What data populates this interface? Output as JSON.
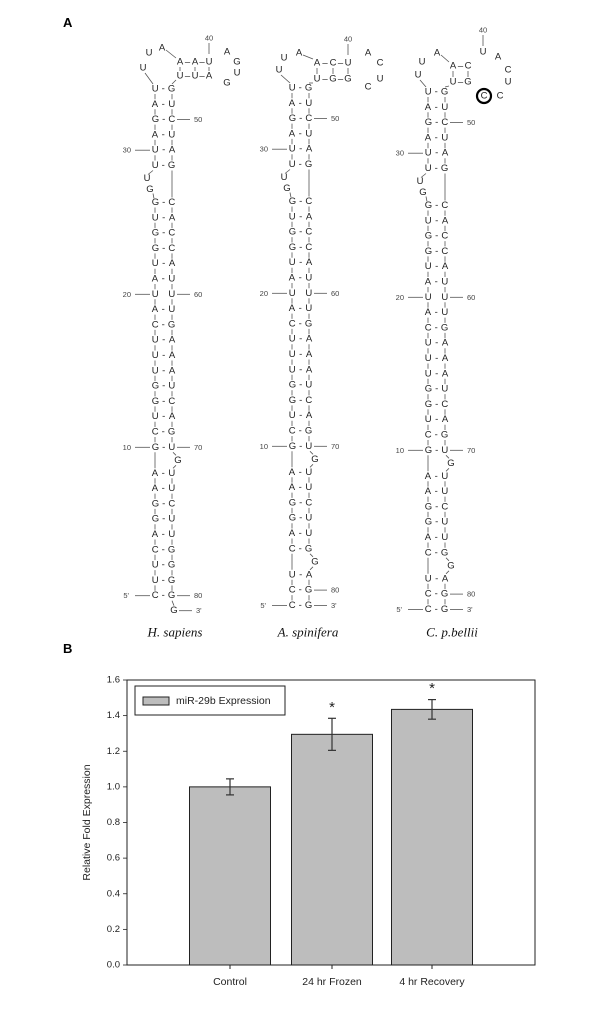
{
  "panels": {
    "a": "A",
    "b": "B"
  },
  "structures": [
    {
      "species": "H. sapiens",
      "loop": {
        "left": [
          "U",
          "U",
          "A"
        ],
        "top": [
          "A",
          "A",
          "U"
        ],
        "bottom": [
          "U",
          "U",
          "A"
        ],
        "hairpin": [
          "A",
          "G",
          "U",
          "G"
        ],
        "label": "40"
      },
      "rows": [
        "U-G",
        "A-U",
        "G-C",
        "A-U",
        "U-A",
        "U-G",
        {
          "bulge": "left",
          "bases": [
            "U",
            "G"
          ]
        },
        "G-C",
        "U-A",
        "G-C",
        "G-C",
        "U-A",
        "A-U",
        "U U",
        "A-U",
        "C-G",
        "U-A",
        "U-A",
        "U-A",
        "G-U",
        "G-C",
        "U-A",
        "C-G",
        "G-U",
        {
          "bulge": "right",
          "bases": [
            "G"
          ]
        },
        "A-U",
        "A-U",
        "G-C",
        "G-U",
        "A-U",
        "C-G",
        "U-G",
        "U-G",
        "C-G",
        {
          "tail": "G"
        }
      ],
      "labels": [
        {
          "row": 2,
          "side": "right",
          "text": "50"
        },
        {
          "row": 4,
          "side": "left",
          "text": "30"
        },
        {
          "row": 12,
          "side": "left",
          "text": "20"
        },
        {
          "row": 12,
          "side": "right",
          "text": "60"
        },
        {
          "row": 22,
          "side": "left",
          "text": "10"
        },
        {
          "row": 22,
          "side": "right",
          "text": "70"
        },
        {
          "row": 31,
          "side": "left",
          "text": "5'"
        },
        {
          "row": 31,
          "side": "right",
          "text": "80"
        },
        {
          "row": 32,
          "side": "right",
          "text": "3'"
        }
      ]
    },
    {
      "species": "A. spinifera",
      "loop": {
        "left": [
          "U",
          "U",
          "A"
        ],
        "top": [
          "A",
          "C",
          "U"
        ],
        "bottom": [
          "U",
          "G",
          "G"
        ],
        "hairpin": [
          "A",
          "C",
          "U",
          "C"
        ],
        "label": "40"
      },
      "rows": [
        "U-G",
        "A-U",
        "G-C",
        "A-U",
        "U-A",
        "U-G",
        {
          "bulge": "left",
          "bases": [
            "U",
            "G"
          ]
        },
        "G-C",
        "U-A",
        "G-C",
        "G-C",
        "U-A",
        "A-U",
        "U U",
        "A-U",
        "C-G",
        "U-A",
        "U-A",
        "U-A",
        "G-U",
        "G-C",
        "U-A",
        "C-G",
        "G-U",
        {
          "bulge": "right",
          "bases": [
            "G"
          ]
        },
        "A-U",
        "A-U",
        "G-C",
        "G-U",
        "A-U",
        "C-G",
        {
          "bulge": "right",
          "bases": [
            "G"
          ]
        },
        "U-A",
        "C-G",
        "C-G"
      ],
      "labels": [
        {
          "row": 2,
          "side": "right",
          "text": "50"
        },
        {
          "row": 4,
          "side": "left",
          "text": "30"
        },
        {
          "row": 12,
          "side": "left",
          "text": "20"
        },
        {
          "row": 12,
          "side": "right",
          "text": "60"
        },
        {
          "row": 22,
          "side": "left",
          "text": "10"
        },
        {
          "row": 22,
          "side": "right",
          "text": "70"
        },
        {
          "row": 30,
          "side": "right",
          "text": "80"
        },
        {
          "row": 31,
          "side": "left",
          "text": "5'"
        },
        {
          "row": 31,
          "side": "right",
          "text": "3'"
        }
      ]
    },
    {
      "species": "C. p.bellii",
      "loop": {
        "left": [
          "U",
          "U",
          "A"
        ],
        "top": [
          "A",
          "C"
        ],
        "bottom": [
          "U",
          "G"
        ],
        "hairpin": [
          "C",
          "C",
          "U",
          "C",
          "A",
          "U"
        ],
        "circled_index": 0,
        "label": "40"
      },
      "rows": [
        "U-G",
        "A-U",
        "G-C",
        "A-U",
        "U-A",
        "U-G",
        {
          "bulge": "left",
          "bases": [
            "U",
            "G"
          ]
        },
        "G-C",
        "U-A",
        "G-C",
        "G-C",
        "U-A",
        "A-U",
        "U U",
        "A-U",
        "C-G",
        "U-A",
        "U-A",
        "U-A",
        "G-U",
        "G-C",
        "U-A",
        "C-G",
        "G-U",
        {
          "bulge": "right",
          "bases": [
            "G"
          ]
        },
        "A-U",
        "A-U",
        "G-C",
        "G-U",
        "A-U",
        "C-G",
        {
          "bulge": "right",
          "bases": [
            "G"
          ]
        },
        "U-A",
        "C-G",
        "C-G"
      ],
      "labels": [
        {
          "row": 2,
          "side": "right",
          "text": "50"
        },
        {
          "row": 4,
          "side": "left",
          "text": "30"
        },
        {
          "row": 12,
          "side": "left",
          "text": "20"
        },
        {
          "row": 12,
          "side": "right",
          "text": "60"
        },
        {
          "row": 22,
          "side": "left",
          "text": "10"
        },
        {
          "row": 22,
          "side": "right",
          "text": "70"
        },
        {
          "row": 30,
          "side": "right",
          "text": "80"
        },
        {
          "row": 31,
          "side": "left",
          "text": "5'"
        },
        {
          "row": 31,
          "side": "right",
          "text": "3'"
        }
      ]
    }
  ],
  "chart_data": {
    "type": "bar",
    "title": "",
    "xlabel": "",
    "ylabel": "Relative Fold Expression",
    "categories": [
      "Control",
      "24 hr Frozen",
      "4 hr Recovery"
    ],
    "series": [
      {
        "name": "miR-29b Expression",
        "values": [
          1.0,
          1.295,
          1.435
        ],
        "errors": [
          0.045,
          0.09,
          0.055
        ],
        "color": "#bdbdbd"
      }
    ],
    "significance": [
      "",
      "*",
      "*"
    ],
    "ylim": [
      0,
      1.6
    ],
    "yticks": [
      "0.0",
      "0.2",
      "0.4",
      "0.6",
      "0.8",
      "1.0",
      "1.2",
      "1.4",
      "1.6"
    ],
    "grid": false,
    "legend": "top-left"
  }
}
